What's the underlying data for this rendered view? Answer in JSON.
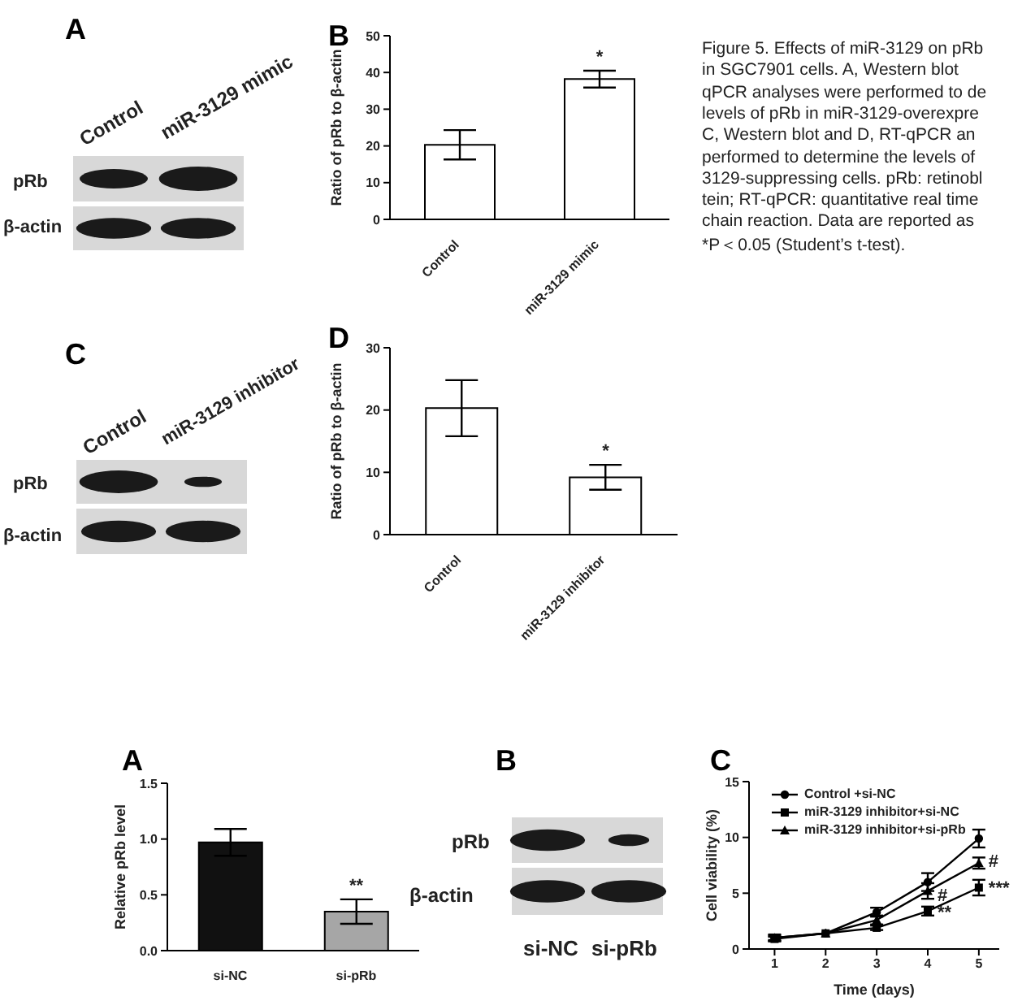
{
  "chart_data": [
    {
      "type": "other",
      "title": "A",
      "annotations": [
        "Control",
        "miR-3129 mimic",
        "pRb",
        "β-actin"
      ]
    },
    {
      "type": "bar",
      "title": "B",
      "ylabel": "Ratio of pRb to β-actin",
      "categories": [
        "Control",
        "miR-3129 mimic"
      ],
      "values": [
        20.3,
        38.2
      ],
      "errors": [
        4,
        2.3
      ],
      "colors": [
        "#ffffff",
        "#ffffff"
      ],
      "ylim": [
        0,
        50
      ],
      "yticks": [
        0,
        10,
        20,
        30,
        40,
        50
      ],
      "annotations": [
        {
          "text": "*",
          "x": "miR-3129 mimic",
          "y": 40.5
        }
      ]
    },
    {
      "type": "other",
      "annotations": [
        "Figure 5. Effects of miR-3129 on pRb",
        "in SGC7901 cells. A, Western blot",
        "qPCR analyses were performed to de",
        "levels of pRb in miR-3129-overexpre",
        "C, Western blot and D, RT-qPCR an",
        "performed to determine the levels of",
        "3129-suppressing cells. pRb: retinobl",
        "tein; RT-qPCR: quantitative real time",
        "chain reaction. Data are reported as",
        "*P＜0.05 (Student’s t-test)."
      ]
    },
    {
      "type": "other",
      "title": "C",
      "annotations": [
        "Control",
        "miR-3129 inhibitor",
        "pRb",
        "β-actin"
      ]
    },
    {
      "type": "bar",
      "title": "D",
      "ylabel": "Ratio of pRb to β-actin",
      "categories": [
        "Control",
        "miR-3129 inhibitor"
      ],
      "values": [
        20.3,
        9.2
      ],
      "errors": [
        4.5,
        2
      ],
      "colors": [
        "#ffffff",
        "#ffffff"
      ],
      "ylim": [
        0,
        30
      ],
      "yticks": [
        0,
        10,
        20,
        30
      ],
      "annotations": [
        {
          "text": "*",
          "x": "miR-3129 inhibitor",
          "y": 11.2
        }
      ]
    },
    {
      "type": "bar",
      "title": "A",
      "ylabel": "Relative pRb level",
      "categories": [
        "si-NC",
        "si-pRb"
      ],
      "values": [
        0.97,
        0.35
      ],
      "errors": [
        0.12,
        0.11
      ],
      "colors": [
        "#111111",
        "#a6a6a6"
      ],
      "ylim": [
        0,
        1.5
      ],
      "yticks": [
        {
          "value": 0,
          "label": "0.0"
        },
        {
          "value": 0.5,
          "label": "0.5"
        },
        {
          "value": 1,
          "label": "1.0"
        },
        {
          "value": 1.5,
          "label": "1.5"
        }
      ],
      "annotations": [
        {
          "text": "**",
          "x": "si-pRb",
          "y": 0.46
        }
      ]
    },
    {
      "type": "other",
      "title": "B",
      "annotations": [
        "pRb",
        "β-actin",
        "si-NC",
        "si-pRb"
      ]
    },
    {
      "type": "line",
      "title": "C",
      "xlabel": "Time (days)",
      "ylabel": "Cell viability (%)",
      "x": [
        1,
        2,
        3,
        4,
        5
      ],
      "xlim": [
        0.5,
        5.4
      ],
      "xticks": [
        1,
        2,
        3,
        4,
        5
      ],
      "ylim": [
        0,
        15
      ],
      "yticks": [
        0,
        5,
        10,
        15
      ],
      "legend": "top left",
      "series": [
        {
          "name": "Control +si-NC",
          "color": "#000000",
          "marker": "circle",
          "values": [
            1.0,
            1.4,
            3.3,
            6.0,
            9.9
          ],
          "errors": [
            0.3,
            null,
            0.4,
            0.8,
            0.8
          ]
        },
        {
          "name": "miR-3129 inhibitor+si-NC",
          "color": "#000000",
          "marker": "square",
          "values": [
            0.9,
            1.4,
            1.9,
            3.4,
            5.5
          ],
          "errors": [
            0.2,
            null,
            0.2,
            0.4,
            0.7
          ]
        },
        {
          "name": "miR-3129 inhibitor+si-pRb",
          "color": "#000000",
          "marker": "triangle",
          "values": [
            1.0,
            1.4,
            2.6,
            5.2,
            7.7
          ],
          "errors": [
            0.2,
            null,
            0.4,
            0.7,
            0.5
          ]
        }
      ],
      "annotations": [
        {
          "text": "#",
          "x": 4,
          "y": 4.9
        },
        {
          "text": "**",
          "x": 4,
          "y": 3.3
        },
        {
          "text": "#",
          "x": 5,
          "y": 7.9
        },
        {
          "text": "***",
          "x": 5,
          "y": 5.5
        }
      ]
    }
  ]
}
